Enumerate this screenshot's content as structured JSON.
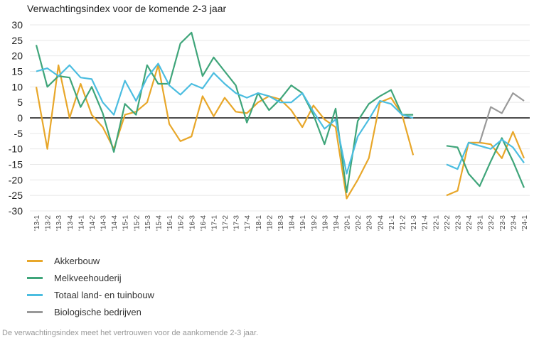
{
  "chart_data": {
    "type": "line",
    "title": "Verwachtingsindex voor de komende 2-3 jaar",
    "ylim": [
      -30,
      30
    ],
    "yticks": [
      30,
      25,
      20,
      15,
      10,
      5,
      0,
      -5,
      -10,
      -15,
      -20,
      -25,
      -30
    ],
    "grid": true,
    "legend_position": "bottom-left",
    "categories": [
      "'13-1",
      "'13-2",
      "'13-3",
      "'13-4",
      "'14-1",
      "'14-2",
      "'14-3",
      "'14-4",
      "'15-1",
      "'15-2",
      "'15-3",
      "'15-4",
      "'16-1",
      "'16-2",
      "'16-3",
      "'16-4",
      "'17-1",
      "'17-2",
      "'17-3",
      "'17-4",
      "'18-1",
      "'18-2",
      "'18-3",
      "'18-4",
      "'19-1",
      "'19-2",
      "'19-3",
      "'19-4",
      "'20-1",
      "'20-2",
      "'20-3",
      "'20-4",
      "'21-1",
      "'21-2",
      "'21-3",
      "'21-4",
      "'22-1",
      "'22-2",
      "'22-3",
      "'22-4",
      "'23-1",
      "'23-2",
      "'23-3",
      "'23-4",
      "'24-1"
    ],
    "series": [
      {
        "name": "Akkerbouw",
        "color": "#e8a72a",
        "values": [
          10,
          -10,
          17,
          0,
          11,
          1,
          -3,
          -10,
          1,
          2,
          5,
          17,
          -2,
          -7.5,
          -6,
          7,
          0.5,
          6.5,
          2,
          1.5,
          5,
          7,
          6,
          2.5,
          -3,
          4,
          -0.5,
          -3,
          -26,
          -20,
          -13,
          5,
          6.5,
          1,
          -12,
          null,
          null,
          -25,
          -23.5,
          -8,
          -8,
          -8.5,
          -13,
          -4.5,
          -13
        ]
      },
      {
        "name": "Melkveehouderij",
        "color": "#3fa57a",
        "values": [
          23.5,
          10,
          13.5,
          13,
          3.5,
          10,
          1.5,
          -11,
          4.5,
          1,
          17,
          11,
          11,
          24,
          27.5,
          13.5,
          19.5,
          15,
          10.5,
          -1.5,
          8,
          2.5,
          6,
          10.5,
          8,
          1,
          -8.5,
          3,
          -24,
          -1,
          4.5,
          7,
          9,
          1,
          1,
          null,
          null,
          -9,
          -9.5,
          -18,
          -22,
          -14,
          -6.5,
          -14,
          -22.5
        ]
      },
      {
        "name": "Totaal land- en tuinbouw",
        "color": "#4bbde0",
        "values": [
          15,
          16,
          13.5,
          17,
          13,
          12.5,
          5,
          1,
          12,
          5.5,
          13,
          17.5,
          10.5,
          7.5,
          11,
          9.5,
          14.5,
          11,
          8,
          6.5,
          8,
          7,
          5,
          5,
          8,
          2,
          -3.5,
          -0.5,
          -18,
          -6,
          -0.5,
          5.5,
          4.5,
          1,
          0,
          null,
          null,
          -15,
          -16.5,
          -8,
          -9,
          -10,
          -7,
          -9.5,
          -14.5
        ]
      },
      {
        "name": "Biologische bedrijven",
        "color": "#999999",
        "values": [
          null,
          null,
          null,
          null,
          null,
          null,
          null,
          null,
          null,
          null,
          null,
          null,
          null,
          null,
          null,
          null,
          null,
          null,
          null,
          null,
          null,
          null,
          null,
          null,
          null,
          null,
          null,
          null,
          null,
          null,
          null,
          null,
          null,
          null,
          null,
          null,
          null,
          null,
          null,
          null,
          -8,
          3.5,
          1.5,
          8,
          5.5
        ]
      }
    ]
  },
  "caption": "De verwachtingsindex meet het vertrouwen voor de aankomende 2-3 jaar."
}
